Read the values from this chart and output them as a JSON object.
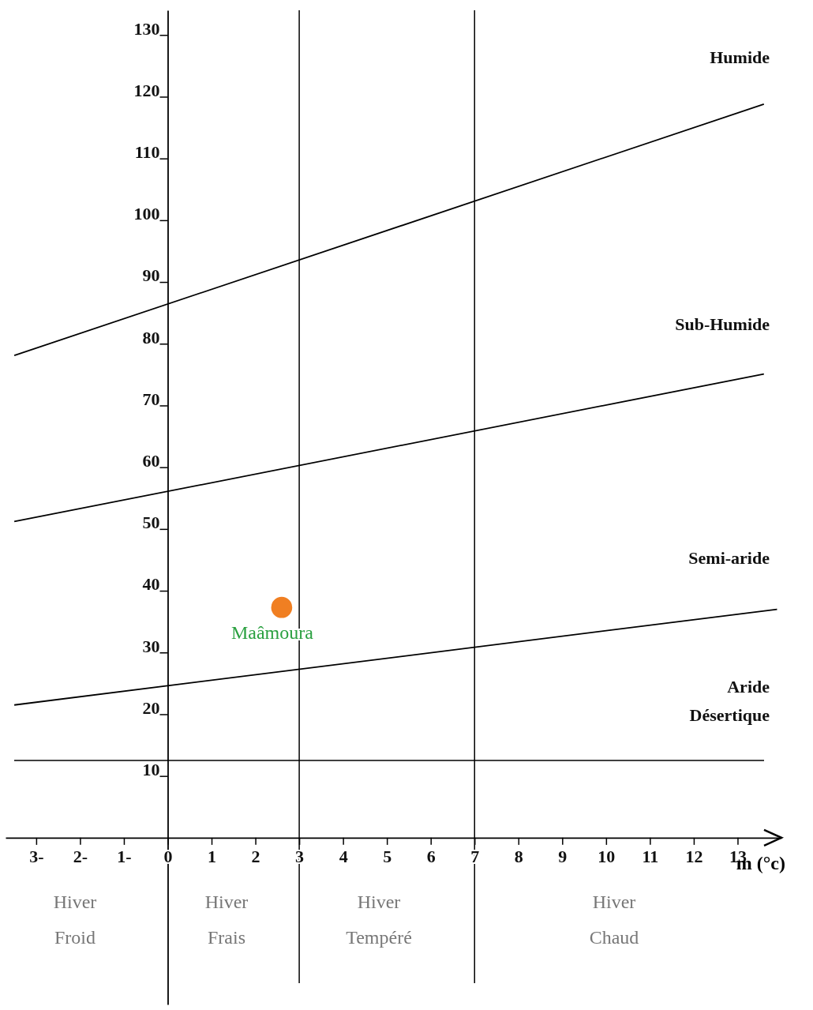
{
  "chart_data": {
    "type": "line",
    "xlabel": "m (°c)",
    "xlim": [
      -3.7,
      14
    ],
    "ylim": [
      -27,
      134
    ],
    "xticks": [
      {
        "value": -3,
        "label": "3-"
      },
      {
        "value": -2,
        "label": "2-"
      },
      {
        "value": -1,
        "label": "1-"
      },
      0,
      1,
      2,
      3,
      4,
      5,
      6,
      7,
      8,
      9,
      10,
      11,
      12,
      13
    ],
    "yticks": [
      10,
      20,
      30,
      40,
      50,
      60,
      70,
      80,
      90,
      100,
      110,
      120,
      130
    ],
    "grid": false,
    "marker": "none",
    "line_style": "solid",
    "series": [
      {
        "color": "#000000",
        "x": [
          -3.5,
          13.6
        ],
        "values": [
          78.1,
          118.8
        ]
      },
      {
        "color": "#000000",
        "x": [
          -3.5,
          13.6
        ],
        "values": [
          51.2,
          75.1
        ]
      },
      {
        "color": "#000000",
        "x": [
          -3.5,
          13.9
        ],
        "values": [
          21.5,
          37.0
        ]
      },
      {
        "type": "scatter",
        "name": "Maâmoura",
        "color": "#f07f22",
        "marker": "circle",
        "x": [
          2.6
        ],
        "values": [
          37.3
        ]
      }
    ],
    "ref_lines": [
      {
        "axis": "y",
        "value": 12.5,
        "color": "#000000"
      },
      {
        "axis": "x",
        "value": 3,
        "color": "#000000"
      },
      {
        "axis": "x",
        "value": 7,
        "color": "#000000"
      }
    ],
    "annotations": [
      "Humide",
      "Sub-Humide",
      "Semi-aride",
      "Aride\nDésertique",
      "Hiver\nFroid",
      "Hiver\nFrais",
      "Hiver\nTempéré",
      "Hiver\nChaud"
    ]
  }
}
